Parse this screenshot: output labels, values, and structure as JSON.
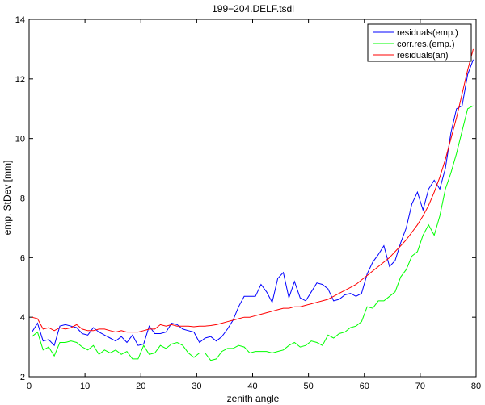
{
  "chart_data": {
    "type": "line",
    "title": "199−204.DELF.tsdl",
    "xlabel": "zenith angle",
    "ylabel": "emp. StDev [mm]",
    "xlim": [
      0,
      80
    ],
    "ylim": [
      2,
      14
    ],
    "xticks": [
      "0",
      "10",
      "20",
      "30",
      "40",
      "50",
      "60",
      "70",
      "80"
    ],
    "yticks": [
      "2",
      "4",
      "6",
      "8",
      "10",
      "12",
      "14"
    ],
    "legend_position": "top-right",
    "grid": false,
    "x": [
      0.5,
      1.5,
      2.5,
      3.5,
      4.5,
      5.5,
      6.5,
      7.5,
      8.5,
      9.5,
      10.5,
      11.5,
      12.5,
      13.5,
      14.5,
      15.5,
      16.5,
      17.5,
      18.5,
      19.5,
      20.5,
      21.5,
      22.5,
      23.5,
      24.5,
      25.5,
      26.5,
      27.5,
      28.5,
      29.5,
      30.5,
      31.5,
      32.5,
      33.5,
      34.5,
      35.5,
      36.5,
      37.5,
      38.5,
      39.5,
      40.5,
      41.5,
      42.5,
      43.5,
      44.5,
      45.5,
      46.5,
      47.5,
      48.5,
      49.5,
      50.5,
      51.5,
      52.5,
      53.5,
      54.5,
      55.5,
      56.5,
      57.5,
      58.5,
      59.5,
      60.5,
      61.5,
      62.5,
      63.5,
      64.5,
      65.5,
      66.5,
      67.5,
      68.5,
      69.5,
      70.5,
      71.5,
      72.5,
      73.5,
      74.5,
      75.5,
      76.5,
      77.5,
      78.5,
      79.5
    ],
    "series": [
      {
        "name": "residuals(emp.)",
        "color": "#0000ff",
        "values": [
          3.5,
          3.8,
          3.2,
          3.25,
          3.05,
          3.7,
          3.75,
          3.7,
          3.65,
          3.45,
          3.4,
          3.65,
          3.5,
          3.4,
          3.3,
          3.2,
          3.35,
          3.15,
          3.4,
          3.05,
          3.1,
          3.7,
          3.45,
          3.45,
          3.5,
          3.8,
          3.75,
          3.6,
          3.55,
          3.5,
          3.15,
          3.3,
          3.35,
          3.2,
          3.35,
          3.6,
          3.9,
          4.35,
          4.7,
          4.7,
          4.7,
          5.1,
          4.85,
          4.5,
          5.3,
          5.5,
          4.65,
          5.2,
          4.65,
          4.55,
          4.85,
          5.15,
          5.1,
          4.95,
          4.55,
          4.6,
          4.75,
          4.8,
          4.7,
          4.8,
          5.45,
          5.85,
          6.1,
          6.4,
          5.7,
          5.9,
          6.5,
          7.0,
          7.8,
          8.2,
          7.6,
          8.3,
          8.6,
          8.3,
          9.0,
          10.2,
          11.0,
          11.1,
          12.15,
          12.65
        ]
      },
      {
        "name": "corr.res.(emp.)",
        "color": "#00ff00",
        "values": [
          3.35,
          3.5,
          2.9,
          3.0,
          2.7,
          3.15,
          3.15,
          3.2,
          3.15,
          3.0,
          2.9,
          3.05,
          2.75,
          2.9,
          2.8,
          2.9,
          2.75,
          2.85,
          2.6,
          2.6,
          3.05,
          2.75,
          2.8,
          3.05,
          2.95,
          3.1,
          3.15,
          3.05,
          2.8,
          2.65,
          2.8,
          2.8,
          2.55,
          2.6,
          2.85,
          2.95,
          2.95,
          3.05,
          3.0,
          2.8,
          2.85,
          2.85,
          2.85,
          2.8,
          2.85,
          2.9,
          3.05,
          3.15,
          3.0,
          3.05,
          3.2,
          3.15,
          3.05,
          3.4,
          3.3,
          3.45,
          3.5,
          3.65,
          3.7,
          3.85,
          4.35,
          4.3,
          4.55,
          4.55,
          4.7,
          4.85,
          5.35,
          5.6,
          6.05,
          6.2,
          6.75,
          7.1,
          6.75,
          7.4,
          8.3,
          8.85,
          9.5,
          10.25,
          11.0,
          11.1
        ]
      },
      {
        "name": "residuals(an)",
        "color": "#ff0000",
        "values": [
          4.0,
          3.95,
          3.6,
          3.65,
          3.55,
          3.65,
          3.6,
          3.65,
          3.75,
          3.6,
          3.55,
          3.55,
          3.6,
          3.6,
          3.55,
          3.5,
          3.55,
          3.5,
          3.5,
          3.5,
          3.55,
          3.6,
          3.6,
          3.75,
          3.7,
          3.75,
          3.7,
          3.7,
          3.7,
          3.68,
          3.7,
          3.7,
          3.72,
          3.75,
          3.8,
          3.85,
          3.9,
          3.95,
          4.0,
          4.0,
          4.05,
          4.1,
          4.15,
          4.2,
          4.25,
          4.3,
          4.3,
          4.35,
          4.35,
          4.4,
          4.45,
          4.5,
          4.55,
          4.6,
          4.7,
          4.8,
          4.9,
          5.0,
          5.1,
          5.25,
          5.4,
          5.55,
          5.7,
          5.85,
          6.0,
          6.2,
          6.4,
          6.6,
          6.85,
          7.1,
          7.4,
          7.75,
          8.2,
          8.7,
          9.3,
          10.0,
          10.7,
          11.5,
          12.3,
          13.0
        ]
      }
    ]
  }
}
